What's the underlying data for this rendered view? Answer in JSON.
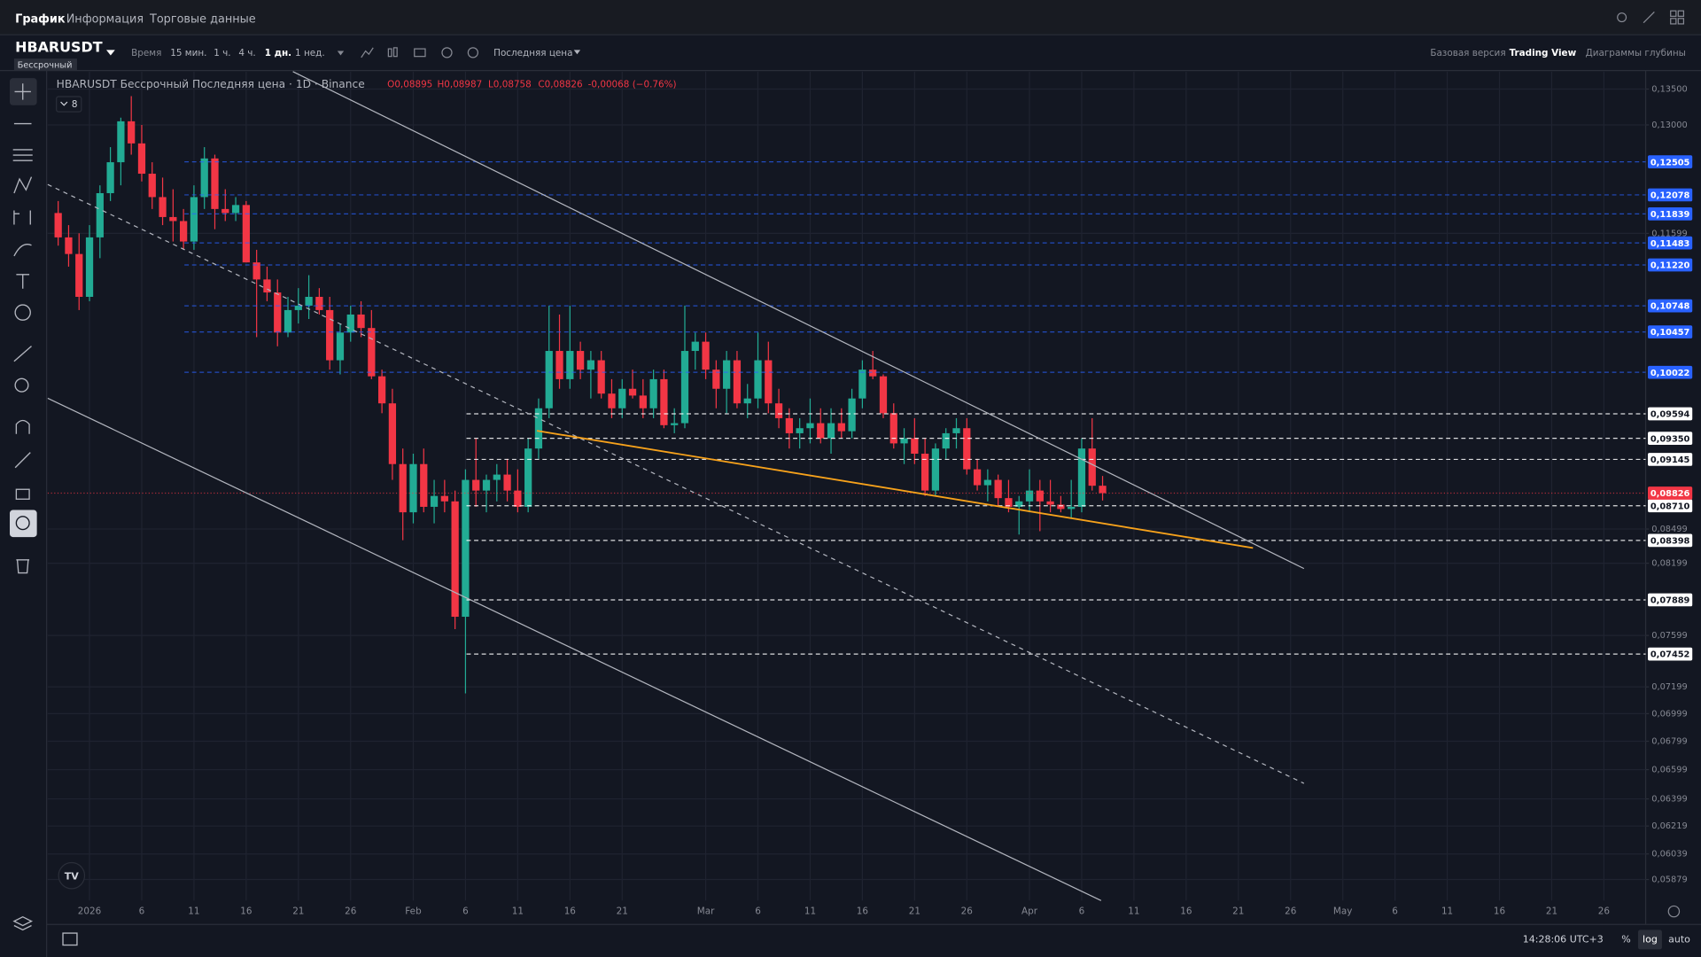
{
  "ui": {
    "tabs": [
      "График",
      "Информация",
      "Торговые данные"
    ],
    "symbol": "HBARUSDT",
    "contract": "Бессрочный",
    "toolbar": [
      "Время",
      "15 мин.",
      "1 ч.",
      "4 ч.",
      "1 дн.",
      "1 нед."
    ],
    "price_source": "Последняя цена",
    "views": [
      "Базовая версия",
      "Trading View",
      "Диаграммы глубины"
    ],
    "legend_title": "HBARUSDT Бессрочный Последняя цена · 1D · Binance",
    "legend_ohlc": [
      "O0,08895",
      "H0,08987",
      "L0,08758",
      "C0,08826",
      "-0,00068 (−0.76%)"
    ],
    "indicators_count": "8",
    "clock": "14:28:06 UTC+3",
    "scale_buttons": [
      "%",
      "log",
      "auto"
    ]
  },
  "chart_data": {
    "type": "candlestick",
    "up_color": "#22ab94",
    "down_color": "#f23645",
    "log_scale": true,
    "grid": true,
    "xlim": [
      "2025-12-28",
      "2026-05-30"
    ],
    "ylim": [
      0.0575,
      0.1375
    ],
    "yticks": [
      {
        "value": 0.135,
        "label": "0,13500"
      },
      {
        "value": 0.13,
        "label": "0,13000"
      },
      {
        "value": 0.11599,
        "label": "0,11599"
      },
      {
        "value": 0.08499,
        "label": "0,08499"
      },
      {
        "value": 0.08199,
        "label": "0,08199"
      },
      {
        "value": 0.07599,
        "label": "0,07599"
      },
      {
        "value": 0.07199,
        "label": "0,07199"
      },
      {
        "value": 0.06999,
        "label": "0,06999"
      },
      {
        "value": 0.06799,
        "label": "0,06799"
      },
      {
        "value": 0.06599,
        "label": "0,06599"
      },
      {
        "value": 0.06399,
        "label": "0,06399"
      },
      {
        "value": 0.06219,
        "label": "0,06219"
      },
      {
        "value": 0.06039,
        "label": "0,06039"
      },
      {
        "value": 0.05879,
        "label": "0,05879"
      }
    ],
    "xticks": [
      {
        "value": "2026-01-01",
        "label": "2026"
      },
      {
        "value": "2026-01-06",
        "label": "6"
      },
      {
        "value": "2026-01-11",
        "label": "11"
      },
      {
        "value": "2026-01-16",
        "label": "16"
      },
      {
        "value": "2026-01-21",
        "label": "21"
      },
      {
        "value": "2026-01-26",
        "label": "26"
      },
      {
        "value": "2026-02-01",
        "label": "Feb"
      },
      {
        "value": "2026-02-06",
        "label": "6"
      },
      {
        "value": "2026-02-11",
        "label": "11"
      },
      {
        "value": "2026-02-16",
        "label": "16"
      },
      {
        "value": "2026-02-21",
        "label": "21"
      },
      {
        "value": "2026-03-01",
        "label": "Mar"
      },
      {
        "value": "2026-03-06",
        "label": "6"
      },
      {
        "value": "2026-03-11",
        "label": "11"
      },
      {
        "value": "2026-03-16",
        "label": "16"
      },
      {
        "value": "2026-03-21",
        "label": "21"
      },
      {
        "value": "2026-03-26",
        "label": "26"
      },
      {
        "value": "2026-04-01",
        "label": "Apr"
      },
      {
        "value": "2026-04-06",
        "label": "6"
      },
      {
        "value": "2026-04-11",
        "label": "11"
      },
      {
        "value": "2026-04-16",
        "label": "16"
      },
      {
        "value": "2026-04-21",
        "label": "21"
      },
      {
        "value": "2026-04-26",
        "label": "26"
      },
      {
        "value": "2026-05-01",
        "label": "May"
      },
      {
        "value": "2026-05-06",
        "label": "6"
      },
      {
        "value": "2026-05-11",
        "label": "11"
      },
      {
        "value": "2026-05-16",
        "label": "16"
      },
      {
        "value": "2026-05-21",
        "label": "21"
      },
      {
        "value": "2026-05-26",
        "label": "26"
      }
    ],
    "price_levels": [
      {
        "value": 0.12505,
        "label": "0,12505",
        "color": "#2962ff"
      },
      {
        "value": 0.12078,
        "label": "0,12078",
        "color": "#2962ff"
      },
      {
        "value": 0.11839,
        "label": "0,11839",
        "color": "#2962ff"
      },
      {
        "value": 0.11483,
        "label": "0,11483",
        "color": "#2962ff"
      },
      {
        "value": 0.1122,
        "label": "0,11220",
        "color": "#2962ff"
      },
      {
        "value": 0.10748,
        "label": "0,10748",
        "color": "#2962ff"
      },
      {
        "value": 0.10457,
        "label": "0,10457",
        "color": "#2962ff"
      },
      {
        "value": 0.10022,
        "label": "0,10022",
        "color": "#2962ff"
      },
      {
        "value": 0.09594,
        "label": "0,09594",
        "color": "#ffffff"
      },
      {
        "value": 0.0935,
        "label": "0,09350",
        "color": "#ffffff"
      },
      {
        "value": 0.09145,
        "label": "0,09145",
        "color": "#ffffff"
      },
      {
        "value": 0.0871,
        "label": "0,08710",
        "color": "#ffffff"
      },
      {
        "value": 0.08398,
        "label": "0,08398",
        "color": "#ffffff"
      },
      {
        "value": 0.07889,
        "label": "0,07889",
        "color": "#ffffff"
      },
      {
        "value": 0.07452,
        "label": "0,07452",
        "color": "#ffffff"
      },
      {
        "value": 0.08826,
        "label": "0,08826",
        "color": "#f23645"
      }
    ],
    "x": [
      "2025-12-29",
      "2025-12-30",
      "2025-12-31",
      "2026-01-01",
      "2026-01-02",
      "2026-01-03",
      "2026-01-04",
      "2026-01-05",
      "2026-01-06",
      "2026-01-07",
      "2026-01-08",
      "2026-01-09",
      "2026-01-10",
      "2026-01-11",
      "2026-01-12",
      "2026-01-13",
      "2026-01-14",
      "2026-01-15",
      "2026-01-16",
      "2026-01-17",
      "2026-01-18",
      "2026-01-19",
      "2026-01-20",
      "2026-01-21",
      "2026-01-22",
      "2026-01-23",
      "2026-01-24",
      "2026-01-25",
      "2026-01-26",
      "2026-01-27",
      "2026-01-28",
      "2026-01-29",
      "2026-01-30",
      "2026-01-31",
      "2026-02-01",
      "2026-02-02",
      "2026-02-03",
      "2026-02-04",
      "2026-02-05",
      "2026-02-06",
      "2026-02-07",
      "2026-02-08",
      "2026-02-09",
      "2026-02-10",
      "2026-02-11",
      "2026-02-12",
      "2026-02-13",
      "2026-02-14",
      "2026-02-15",
      "2026-02-16",
      "2026-02-17",
      "2026-02-18",
      "2026-02-19",
      "2026-02-20",
      "2026-02-21",
      "2026-02-22",
      "2026-02-23",
      "2026-02-24",
      "2026-02-25",
      "2026-02-26",
      "2026-02-27",
      "2026-02-28",
      "2026-03-01",
      "2026-03-02",
      "2026-03-03",
      "2026-03-04",
      "2026-03-05",
      "2026-03-06",
      "2026-03-07",
      "2026-03-08",
      "2026-03-09",
      "2026-03-10",
      "2026-03-11",
      "2026-03-12",
      "2026-03-13",
      "2026-03-14",
      "2026-03-15",
      "2026-03-16",
      "2026-03-17",
      "2026-03-18",
      "2026-03-19",
      "2026-03-20",
      "2026-03-21",
      "2026-03-22",
      "2026-03-23",
      "2026-03-24",
      "2026-03-25",
      "2026-03-26",
      "2026-03-27",
      "2026-03-28",
      "2026-03-29",
      "2026-03-30",
      "2026-03-31",
      "2026-04-01",
      "2026-04-02",
      "2026-04-03",
      "2026-04-04",
      "2026-04-05",
      "2026-04-06",
      "2026-04-07",
      "2026-04-08"
    ],
    "ohlc": [
      [
        0.1185,
        0.12,
        0.1145,
        0.1155
      ],
      [
        0.1155,
        0.117,
        0.112,
        0.1135
      ],
      [
        0.1135,
        0.116,
        0.107,
        0.1085
      ],
      [
        0.1085,
        0.117,
        0.108,
        0.1155
      ],
      [
        0.1155,
        0.122,
        0.113,
        0.121
      ],
      [
        0.121,
        0.127,
        0.12,
        0.125
      ],
      [
        0.125,
        0.131,
        0.122,
        0.1305
      ],
      [
        0.1305,
        0.134,
        0.126,
        0.1275
      ],
      [
        0.1275,
        0.13,
        0.1225,
        0.1235
      ],
      [
        0.1235,
        0.125,
        0.119,
        0.1205
      ],
      [
        0.1205,
        0.123,
        0.117,
        0.118
      ],
      [
        0.118,
        0.1215,
        0.115,
        0.1175
      ],
      [
        0.1175,
        0.119,
        0.114,
        0.115
      ],
      [
        0.115,
        0.122,
        0.114,
        0.1205
      ],
      [
        0.1205,
        0.127,
        0.119,
        0.1255
      ],
      [
        0.1255,
        0.126,
        0.1165,
        0.119
      ],
      [
        0.119,
        0.1215,
        0.1175,
        0.1185
      ],
      [
        0.1185,
        0.1205,
        0.1175,
        0.1195
      ],
      [
        0.1195,
        0.12,
        0.1125,
        0.1125
      ],
      [
        0.1125,
        0.114,
        0.104,
        0.1105
      ],
      [
        0.1105,
        0.112,
        0.108,
        0.109
      ],
      [
        0.109,
        0.1105,
        0.103,
        0.1045
      ],
      [
        0.1045,
        0.1085,
        0.104,
        0.107
      ],
      [
        0.107,
        0.1095,
        0.1055,
        0.1075
      ],
      [
        0.1075,
        0.111,
        0.106,
        0.1085
      ],
      [
        0.1085,
        0.1095,
        0.1065,
        0.107
      ],
      [
        0.107,
        0.1085,
        0.1005,
        0.1015
      ],
      [
        0.1015,
        0.1055,
        0.1,
        0.1045
      ],
      [
        0.1045,
        0.1075,
        0.1035,
        0.1065
      ],
      [
        0.1065,
        0.108,
        0.104,
        0.105
      ],
      [
        0.105,
        0.107,
        0.0995,
        0.0998
      ],
      [
        0.0998,
        0.1005,
        0.096,
        0.097
      ],
      [
        0.097,
        0.0985,
        0.0895,
        0.091
      ],
      [
        0.091,
        0.0925,
        0.084,
        0.0865
      ],
      [
        0.0865,
        0.092,
        0.0855,
        0.091
      ],
      [
        0.091,
        0.0925,
        0.0865,
        0.087
      ],
      [
        0.087,
        0.0895,
        0.0855,
        0.088
      ],
      [
        0.088,
        0.0895,
        0.0865,
        0.0875
      ],
      [
        0.0875,
        0.0885,
        0.0765,
        0.0775
      ],
      [
        0.0775,
        0.0905,
        0.0715,
        0.0895
      ],
      [
        0.0895,
        0.0935,
        0.087,
        0.0885
      ],
      [
        0.0885,
        0.09,
        0.0865,
        0.0895
      ],
      [
        0.0895,
        0.091,
        0.0875,
        0.09
      ],
      [
        0.09,
        0.0915,
        0.0875,
        0.0885
      ],
      [
        0.0885,
        0.0905,
        0.0865,
        0.087
      ],
      [
        0.087,
        0.0935,
        0.0865,
        0.0925
      ],
      [
        0.0925,
        0.0975,
        0.0915,
        0.0965
      ],
      [
        0.0965,
        0.1075,
        0.0955,
        0.1025
      ],
      [
        0.1025,
        0.1065,
        0.0985,
        0.0995
      ],
      [
        0.0995,
        0.1075,
        0.0985,
        0.1025
      ],
      [
        0.1025,
        0.1035,
        0.0995,
        0.1005
      ],
      [
        0.1005,
        0.1025,
        0.0975,
        0.1015
      ],
      [
        0.1015,
        0.1025,
        0.0975,
        0.098
      ],
      [
        0.098,
        0.0995,
        0.0955,
        0.0965
      ],
      [
        0.0965,
        0.0995,
        0.0955,
        0.0985
      ],
      [
        0.0985,
        0.1005,
        0.0975,
        0.0978
      ],
      [
        0.0978,
        0.0995,
        0.0955,
        0.0965
      ],
      [
        0.0965,
        0.1005,
        0.0955,
        0.0995
      ],
      [
        0.0995,
        0.1005,
        0.0945,
        0.0948
      ],
      [
        0.0948,
        0.0965,
        0.094,
        0.095
      ],
      [
        0.095,
        0.1075,
        0.0945,
        0.1025
      ],
      [
        0.1025,
        0.1045,
        0.1005,
        0.1035
      ],
      [
        0.1035,
        0.1045,
        0.0995,
        0.1005
      ],
      [
        0.1005,
        0.1015,
        0.0965,
        0.0985
      ],
      [
        0.0985,
        0.1025,
        0.096,
        0.1015
      ],
      [
        0.1015,
        0.1025,
        0.0965,
        0.097
      ],
      [
        0.097,
        0.099,
        0.0955,
        0.0975
      ],
      [
        0.0975,
        0.1045,
        0.0965,
        0.1015
      ],
      [
        0.1015,
        0.1035,
        0.096,
        0.097
      ],
      [
        0.097,
        0.0985,
        0.0945,
        0.0955
      ],
      [
        0.0955,
        0.0965,
        0.0925,
        0.094
      ],
      [
        0.094,
        0.0955,
        0.0925,
        0.0945
      ],
      [
        0.0945,
        0.0975,
        0.093,
        0.095
      ],
      [
        0.095,
        0.0965,
        0.093,
        0.0935
      ],
      [
        0.0935,
        0.0965,
        0.092,
        0.095
      ],
      [
        0.095,
        0.0965,
        0.0935,
        0.0942
      ],
      [
        0.0942,
        0.0985,
        0.0935,
        0.0975
      ],
      [
        0.0975,
        0.1015,
        0.0965,
        0.1005
      ],
      [
        0.1005,
        0.1025,
        0.0995,
        0.0998
      ],
      [
        0.0998,
        0.1,
        0.0955,
        0.096
      ],
      [
        0.096,
        0.097,
        0.0925,
        0.093
      ],
      [
        0.093,
        0.0945,
        0.091,
        0.0935
      ],
      [
        0.0935,
        0.0955,
        0.091,
        0.092
      ],
      [
        0.092,
        0.0935,
        0.088,
        0.0885
      ],
      [
        0.0885,
        0.093,
        0.088,
        0.0925
      ],
      [
        0.0925,
        0.0945,
        0.0915,
        0.094
      ],
      [
        0.094,
        0.0955,
        0.0925,
        0.0945
      ],
      [
        0.0945,
        0.0955,
        0.09,
        0.0905
      ],
      [
        0.0905,
        0.0915,
        0.0885,
        0.089
      ],
      [
        0.089,
        0.0905,
        0.0875,
        0.0895
      ],
      [
        0.0895,
        0.09,
        0.087,
        0.0878
      ],
      [
        0.0878,
        0.0895,
        0.0865,
        0.087
      ],
      [
        0.087,
        0.088,
        0.0845,
        0.0875
      ],
      [
        0.0875,
        0.0905,
        0.0865,
        0.0885
      ],
      [
        0.0885,
        0.0895,
        0.0848,
        0.0875
      ],
      [
        0.0875,
        0.0895,
        0.0865,
        0.0872
      ],
      [
        0.0872,
        0.088,
        0.0865,
        0.0868
      ],
      [
        0.0868,
        0.0895,
        0.086,
        0.087
      ],
      [
        0.087,
        0.0935,
        0.0865,
        0.0925
      ],
      [
        0.0925,
        0.0955,
        0.0885,
        0.08895
      ],
      [
        0.08895,
        0.08987,
        0.08758,
        0.08826
      ]
    ]
  }
}
